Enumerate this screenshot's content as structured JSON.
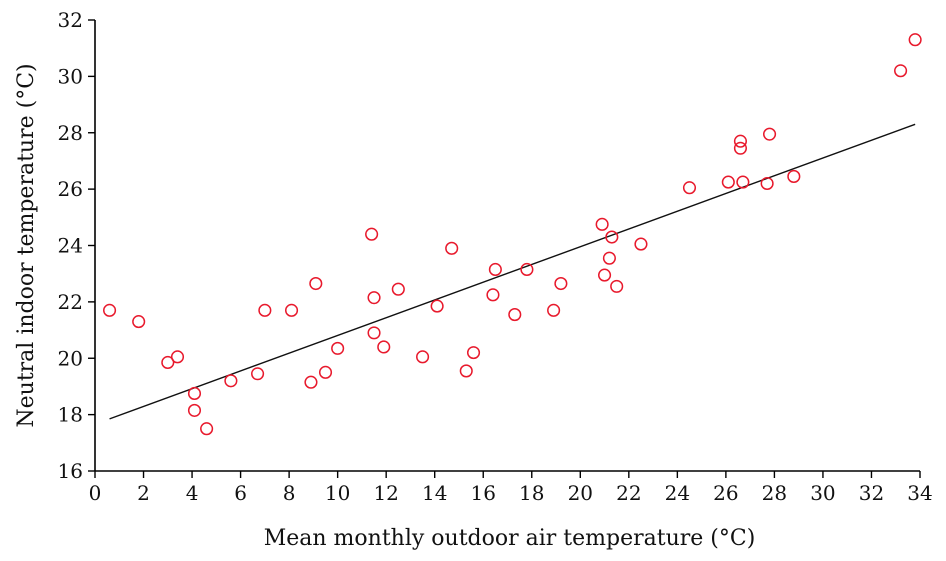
{
  "chart_data": {
    "type": "scatter",
    "title": "",
    "xlabel": "Mean monthly outdoor air temperature (°C)",
    "ylabel": "Neutral indoor  temperature (°C)",
    "xlim": [
      0,
      34
    ],
    "ylim": [
      16,
      32
    ],
    "xticks": [
      "0",
      "2",
      "4",
      "6",
      "8",
      "10",
      "12",
      "14",
      "16",
      "18",
      "20",
      "22",
      "24",
      "26",
      "28",
      "30",
      "32",
      "34"
    ],
    "yticks": [
      "16",
      "18",
      "20",
      "22",
      "24",
      "26",
      "28",
      "30",
      "32"
    ],
    "grid": false,
    "point_color": "#e8192c",
    "trendline": {
      "x": [
        0.6,
        33.8
      ],
      "y": [
        17.85,
        28.3
      ]
    },
    "series": [
      {
        "x": [
          0.6,
          1.8,
          3.0,
          3.4,
          4.1,
          4.1,
          4.6,
          5.6,
          6.7,
          7.0,
          8.1,
          8.9,
          9.1,
          9.5,
          10.0,
          11.4,
          11.5,
          11.5,
          11.9,
          12.5,
          13.5,
          14.1,
          14.7,
          15.3,
          15.6,
          16.4,
          16.5,
          17.3,
          17.8,
          18.9,
          19.2,
          20.9,
          21.0,
          21.2,
          21.3,
          21.5,
          22.5,
          24.5,
          26.1,
          26.6,
          26.6,
          26.7,
          27.7,
          27.8,
          28.8,
          33.2,
          33.8
        ],
        "y": [
          21.7,
          21.3,
          19.85,
          20.05,
          18.75,
          18.15,
          17.5,
          19.2,
          19.45,
          21.7,
          21.7,
          19.15,
          22.65,
          19.5,
          20.35,
          24.4,
          20.9,
          22.15,
          20.4,
          22.45,
          20.05,
          21.85,
          23.9,
          19.55,
          20.2,
          22.25,
          23.15,
          21.55,
          23.15,
          21.7,
          22.65,
          24.75,
          22.95,
          23.55,
          24.3,
          22.55,
          24.05,
          26.05,
          26.25,
          27.45,
          27.7,
          26.25,
          26.2,
          27.95,
          26.45,
          30.2,
          31.3
        ]
      }
    ]
  }
}
